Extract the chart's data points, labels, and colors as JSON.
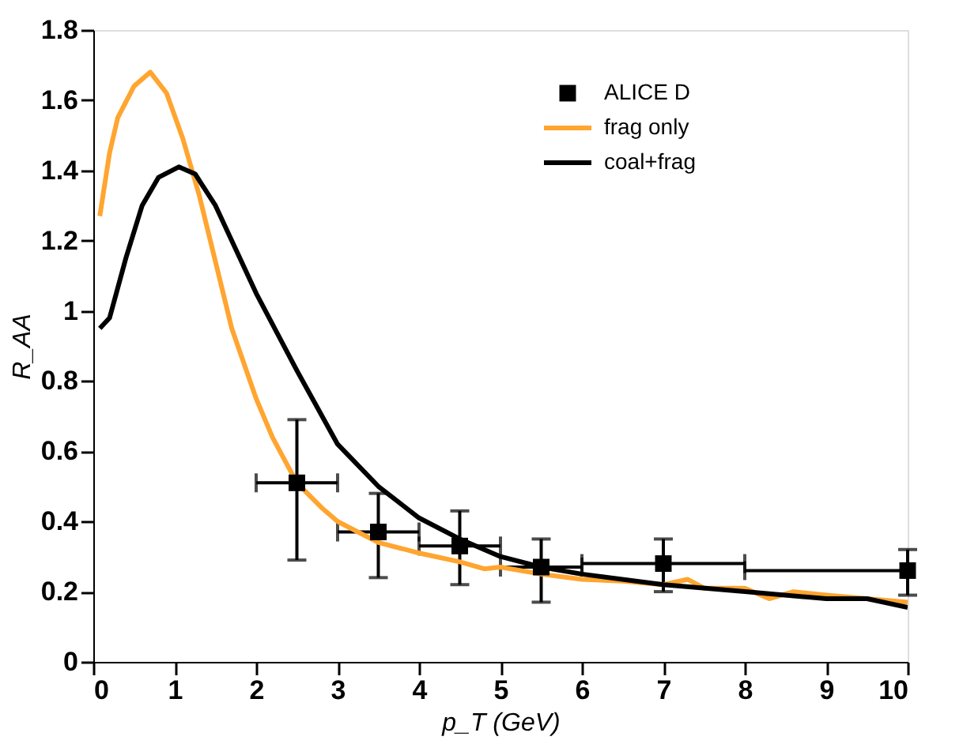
{
  "chart_data": {
    "type": "line",
    "xlabel": "p_T (GeV)",
    "ylabel": "R_AA",
    "xlim": [
      0,
      10
    ],
    "ylim": [
      0,
      1.8
    ],
    "xticks": [
      0,
      1,
      2,
      3,
      4,
      5,
      6,
      7,
      8,
      9,
      10
    ],
    "yticks": [
      0,
      0.2,
      0.4,
      0.6,
      0.8,
      1,
      1.2,
      1.4,
      1.6,
      1.8
    ],
    "grid": false,
    "legend": "top right",
    "series": [
      {
        "name": "ALICE D",
        "type": "scatter",
        "marker": "square",
        "color": "#000000",
        "x": [
          2.5,
          3.5,
          4.5,
          5.5,
          7,
          10
        ],
        "values": [
          0.51,
          0.37,
          0.33,
          0.27,
          0.28,
          0.26
        ],
        "errors": [
          [
            0.29,
            0.69
          ],
          [
            0.24,
            0.48
          ],
          [
            0.22,
            0.43
          ],
          [
            0.17,
            0.35
          ],
          [
            0.2,
            0.35
          ],
          [
            0.19,
            0.32
          ]
        ],
        "xerrors": [
          [
            2,
            3
          ],
          [
            3,
            4
          ],
          [
            4,
            5
          ],
          [
            5,
            6
          ],
          [
            6,
            8
          ],
          [
            8,
            10
          ]
        ]
      },
      {
        "name": "frag only",
        "marker": "none",
        "color": "#ffa530",
        "x": [
          0.08,
          0.2,
          0.3,
          0.5,
          0.7,
          0.9,
          1.1,
          1.3,
          1.5,
          1.7,
          2,
          2.2,
          2.5,
          2.8,
          3,
          3.5,
          4,
          4.5,
          4.8,
          5,
          5.5,
          6,
          6.5,
          7,
          7.3,
          7.5,
          8,
          8.3,
          8.6,
          9,
          9.5,
          10
        ],
        "values": [
          1.27,
          1.45,
          1.55,
          1.64,
          1.68,
          1.62,
          1.49,
          1.33,
          1.14,
          0.95,
          0.75,
          0.64,
          0.51,
          0.44,
          0.4,
          0.34,
          0.31,
          0.285,
          0.265,
          0.27,
          0.25,
          0.235,
          0.23,
          0.22,
          0.235,
          0.21,
          0.21,
          0.18,
          0.2,
          0.19,
          0.18,
          0.17
        ]
      },
      {
        "name": "coal+frag",
        "marker": "none",
        "color": "#000000",
        "x": [
          0.08,
          0.2,
          0.4,
          0.6,
          0.8,
          1.05,
          1.25,
          1.5,
          2,
          2.5,
          3,
          3.5,
          4,
          4.5,
          5,
          5.5,
          6,
          7,
          8,
          9,
          9.5,
          10
        ],
        "values": [
          0.95,
          0.98,
          1.15,
          1.3,
          1.38,
          1.41,
          1.39,
          1.3,
          1.05,
          0.83,
          0.62,
          0.5,
          0.41,
          0.35,
          0.3,
          0.27,
          0.25,
          0.22,
          0.2,
          0.18,
          0.18,
          0.155
        ]
      }
    ]
  }
}
